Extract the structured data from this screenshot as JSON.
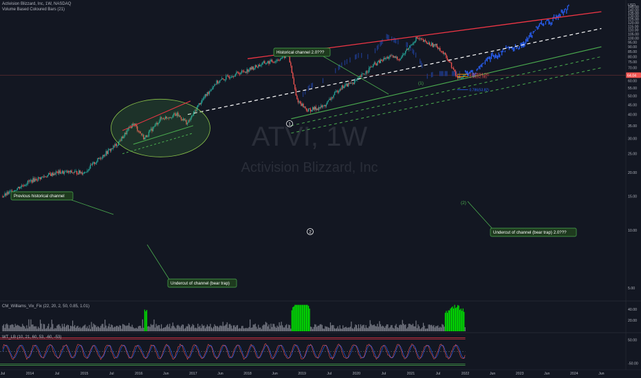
{
  "header": {
    "symbol_title": "Activision Blizzard, Inc, 1W, NASDAQ",
    "volume_indicator": "Volume Based Coloured Bars (21)",
    "watermark_symbol": "ATVI, 1W",
    "watermark_name": "Activision Blizzard, Inc",
    "currency": "USD"
  },
  "indicators": {
    "cm_label": "CM_Williams_Vix_Fix (22, 20, 2, 50, 0.85, 1.01)",
    "wt_label": "WT_LB (10, 21, 60, 53, -60, -53)"
  },
  "annotations": {
    "historical_channel": "Historical channel 2.0???",
    "previous_channel": "Previous historical channel",
    "undercut_1": "Undercut of channel (bear trap)",
    "undercut_2": "Undercut of channel (bear trap) 2.0???",
    "wave_1a": "1",
    "wave_2a": "2",
    "wave_1b": "(1)",
    "wave_2b": "(2)",
    "fib_618": "0.618(64.74)",
    "fib_65": "0.65(62.98)",
    "fib_786": "0.786(53.82)"
  },
  "price_label": "64.04",
  "colors": {
    "background": "#131722",
    "up_candle": "#26a69a",
    "down_candle": "#ef5350",
    "channel_red": "#f23645",
    "channel_green": "#4caf50",
    "midline": "#ffffff",
    "ghost_bars": "#2962ff",
    "vix_green": "#00e600",
    "vix_gray": "#787b86",
    "annotation_bg": "#1e3a1e",
    "annotation_border": "#4caf50"
  },
  "chart_data": [
    {
      "type": "candlestick",
      "title": "Activision Blizzard, Inc, 1W, NASDAQ",
      "x_axis_ticks": [
        "Jul",
        "2014",
        "Jul",
        "2015",
        "Jul",
        "2016",
        "Jun",
        "2017",
        "Jun",
        "2018",
        "Jun",
        "2019",
        "Jul",
        "2020",
        "Jul",
        "2021",
        "Jul",
        "2022",
        "Jun",
        "2023",
        "Jun",
        "2024",
        "Jun"
      ],
      "y_axis_ticks": [
        "145.00",
        "140.00",
        "135.00",
        "130.00",
        "125.00",
        "120.00",
        "115.00",
        "110.00",
        "105.00",
        "100.00",
        "95.00",
        "90.00",
        "85.00",
        "80.00",
        "75.00",
        "70.00",
        "65.00",
        "60.00",
        "55.00",
        "50.00",
        "45.00",
        "40.00",
        "35.00",
        "30.00",
        "25.00",
        "20.00",
        "15.00",
        "10.00",
        "5.00"
      ],
      "y_scale": "log",
      "ylim": [
        4.5,
        150
      ],
      "last_price": 64.04,
      "price_path": [
        {
          "t": 2013.5,
          "v": 15
        },
        {
          "t": 2014.0,
          "v": 18
        },
        {
          "t": 2014.5,
          "v": 20
        },
        {
          "t": 2015.0,
          "v": 20
        },
        {
          "t": 2015.3,
          "v": 24
        },
        {
          "t": 2015.6,
          "v": 28
        },
        {
          "t": 2015.9,
          "v": 36
        },
        {
          "t": 2016.1,
          "v": 30
        },
        {
          "t": 2016.4,
          "v": 38
        },
        {
          "t": 2016.7,
          "v": 40
        },
        {
          "t": 2016.9,
          "v": 36
        },
        {
          "t": 2017.1,
          "v": 45
        },
        {
          "t": 2017.4,
          "v": 58
        },
        {
          "t": 2017.7,
          "v": 64
        },
        {
          "t": 2018.0,
          "v": 68
        },
        {
          "t": 2018.3,
          "v": 74
        },
        {
          "t": 2018.5,
          "v": 76
        },
        {
          "t": 2018.75,
          "v": 82
        },
        {
          "t": 2018.9,
          "v": 48
        },
        {
          "t": 2019.1,
          "v": 42
        },
        {
          "t": 2019.4,
          "v": 44
        },
        {
          "t": 2019.7,
          "v": 55
        },
        {
          "t": 2020.0,
          "v": 60
        },
        {
          "t": 2020.3,
          "v": 72
        },
        {
          "t": 2020.6,
          "v": 80
        },
        {
          "t": 2020.8,
          "v": 78
        },
        {
          "t": 2021.1,
          "v": 100
        },
        {
          "t": 2021.3,
          "v": 94
        },
        {
          "t": 2021.5,
          "v": 90
        },
        {
          "t": 2021.7,
          "v": 76
        },
        {
          "t": 2021.85,
          "v": 62
        },
        {
          "t": 2022.0,
          "v": 64.04
        }
      ],
      "channels": {
        "historical_upper": [
          [
            2018.0,
            78
          ],
          [
            2024.5,
            137
          ]
        ],
        "historical_mid": [
          [
            2016.9,
            40
          ],
          [
            2024.5,
            112
          ]
        ],
        "historical_lower": [
          [
            2018.8,
            38
          ],
          [
            2024.5,
            90
          ]
        ],
        "historical_lower_dash": [
          [
            2018.8,
            35
          ],
          [
            2024.5,
            80
          ]
        ],
        "previous_upper": [
          [
            2015.7,
            33
          ],
          [
            2016.95,
            47
          ]
        ],
        "previous_lower": [
          [
            2015.9,
            28
          ],
          [
            2017.0,
            35
          ]
        ],
        "previous_lower_dash": [
          [
            2015.7,
            25
          ],
          [
            2017.0,
            32
          ]
        ]
      },
      "fibonacci": [
        {
          "label": "0.618(64.74)",
          "value": 64.74
        },
        {
          "label": "0.65(62.98)",
          "value": 62.98
        },
        {
          "label": "0.786(53.82)",
          "value": 53.82
        }
      ]
    },
    {
      "type": "bar",
      "title": "CM_Williams_Vix_Fix (22, 20, 2, 50, 0.85, 1.01)",
      "y_axis_ticks": [
        "40.00",
        "20.00"
      ],
      "ylim": [
        0,
        50
      ]
    },
    {
      "type": "line",
      "title": "WT_LB (10, 21, 60, 53, -60, -53)",
      "y_axis_ticks": [
        "50.00",
        "-50.00"
      ],
      "ylim": [
        -70,
        70
      ],
      "levels": [
        60,
        53,
        -53,
        -60
      ]
    }
  ]
}
